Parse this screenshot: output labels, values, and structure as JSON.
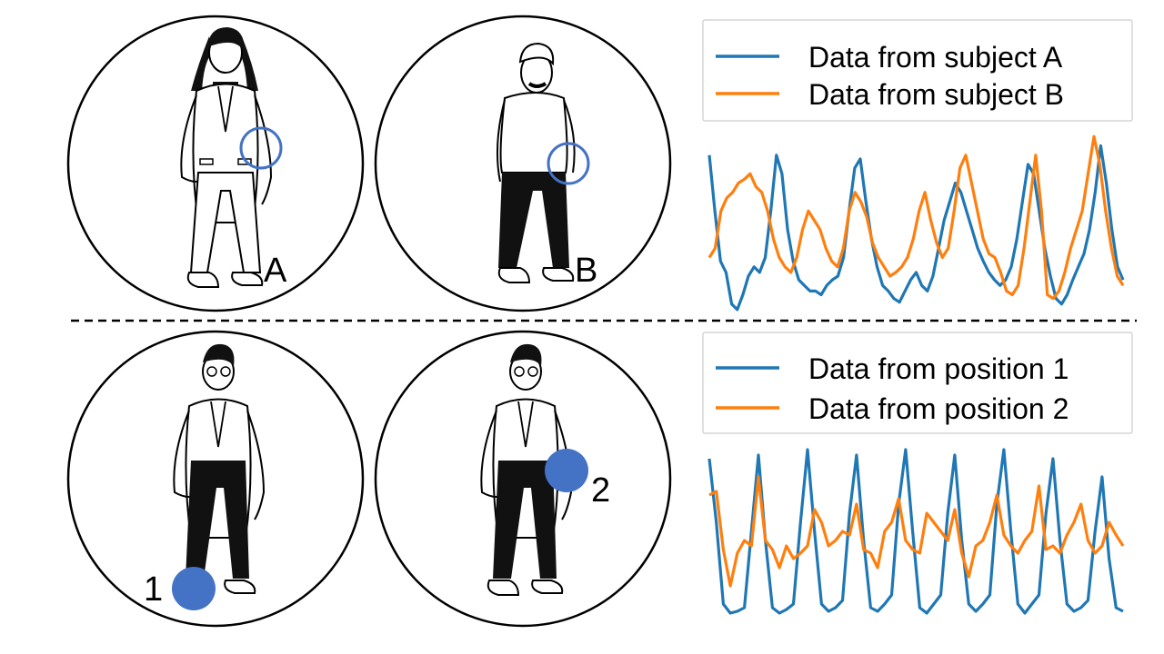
{
  "colors": {
    "series_a": "#1f77b4",
    "series_b": "#ff7f0e",
    "marker": "#4472c4",
    "outline": "#000000"
  },
  "top": {
    "figure_a_label": "A",
    "figure_b_label": "B",
    "legend": [
      "Data from subject A",
      "Data from subject B"
    ],
    "marker_style": "hollow-circle"
  },
  "bottom": {
    "figure_1_label": "1",
    "figure_2_label": "2",
    "legend": [
      "Data from position 1",
      "Data from position 2"
    ],
    "marker_style": "filled-circle"
  },
  "chart_data": [
    {
      "type": "line",
      "axes": "hidden",
      "legend_position": "top",
      "series": [
        {
          "name": "Data from subject A",
          "values": [
            0.85,
            0.55,
            0.28,
            0.22,
            0.05,
            0.02,
            0.1,
            0.2,
            0.25,
            0.22,
            0.3,
            0.55,
            0.85,
            0.75,
            0.45,
            0.28,
            0.18,
            0.15,
            0.12,
            0.12,
            0.1,
            0.15,
            0.18,
            0.2,
            0.3,
            0.55,
            0.78,
            0.83,
            0.6,
            0.4,
            0.25,
            0.15,
            0.12,
            0.08,
            0.06,
            0.12,
            0.18,
            0.22,
            0.15,
            0.12,
            0.2,
            0.35,
            0.5,
            0.6,
            0.7,
            0.65,
            0.55,
            0.45,
            0.35,
            0.28,
            0.22,
            0.18,
            0.15,
            0.18,
            0.25,
            0.4,
            0.6,
            0.8,
            0.75,
            0.55,
            0.35,
            0.2,
            0.08,
            0.05,
            0.1,
            0.18,
            0.25,
            0.32,
            0.45,
            0.65,
            0.9,
            0.7,
            0.45,
            0.25,
            0.18
          ]
        },
        {
          "name": "Data from subject B",
          "values": [
            0.3,
            0.35,
            0.55,
            0.62,
            0.65,
            0.7,
            0.72,
            0.75,
            0.68,
            0.65,
            0.55,
            0.4,
            0.3,
            0.25,
            0.22,
            0.3,
            0.45,
            0.55,
            0.5,
            0.45,
            0.35,
            0.28,
            0.25,
            0.35,
            0.55,
            0.65,
            0.6,
            0.52,
            0.38,
            0.3,
            0.25,
            0.2,
            0.22,
            0.25,
            0.3,
            0.4,
            0.55,
            0.65,
            0.5,
            0.38,
            0.3,
            0.35,
            0.55,
            0.78,
            0.85,
            0.7,
            0.55,
            0.4,
            0.32,
            0.3,
            0.22,
            0.12,
            0.1,
            0.15,
            0.35,
            0.6,
            0.85,
            0.55,
            0.1,
            0.08,
            0.12,
            0.22,
            0.35,
            0.45,
            0.55,
            0.75,
            0.95,
            0.8,
            0.55,
            0.35,
            0.2,
            0.15
          ]
        }
      ]
    },
    {
      "type": "line",
      "axes": "hidden",
      "legend_position": "top",
      "series": [
        {
          "name": "Data from position 1",
          "values": [
            0.9,
            0.55,
            0.1,
            0.05,
            0.06,
            0.08,
            0.5,
            0.92,
            0.45,
            0.08,
            0.05,
            0.07,
            0.1,
            0.55,
            0.95,
            0.5,
            0.1,
            0.06,
            0.08,
            0.12,
            0.6,
            0.92,
            0.45,
            0.08,
            0.06,
            0.1,
            0.15,
            0.65,
            0.95,
            0.5,
            0.08,
            0.05,
            0.1,
            0.15,
            0.6,
            0.92,
            0.45,
            0.1,
            0.06,
            0.1,
            0.15,
            0.65,
            0.95,
            0.5,
            0.1,
            0.05,
            0.1,
            0.15,
            0.6,
            0.9,
            0.45,
            0.1,
            0.06,
            0.08,
            0.12,
            0.5,
            0.8,
            0.35,
            0.08,
            0.06
          ]
        },
        {
          "name": "Data from position 2",
          "values": [
            0.7,
            0.72,
            0.4,
            0.2,
            0.38,
            0.45,
            0.42,
            0.8,
            0.45,
            0.4,
            0.3,
            0.42,
            0.35,
            0.38,
            0.42,
            0.62,
            0.55,
            0.42,
            0.45,
            0.5,
            0.48,
            0.65,
            0.4,
            0.38,
            0.3,
            0.5,
            0.55,
            0.68,
            0.45,
            0.4,
            0.38,
            0.6,
            0.55,
            0.5,
            0.45,
            0.62,
            0.38,
            0.25,
            0.42,
            0.45,
            0.55,
            0.7,
            0.48,
            0.42,
            0.38,
            0.45,
            0.5,
            0.75,
            0.4,
            0.42,
            0.38,
            0.48,
            0.55,
            0.65,
            0.45,
            0.38,
            0.42,
            0.55,
            0.48,
            0.42
          ]
        }
      ]
    }
  ]
}
